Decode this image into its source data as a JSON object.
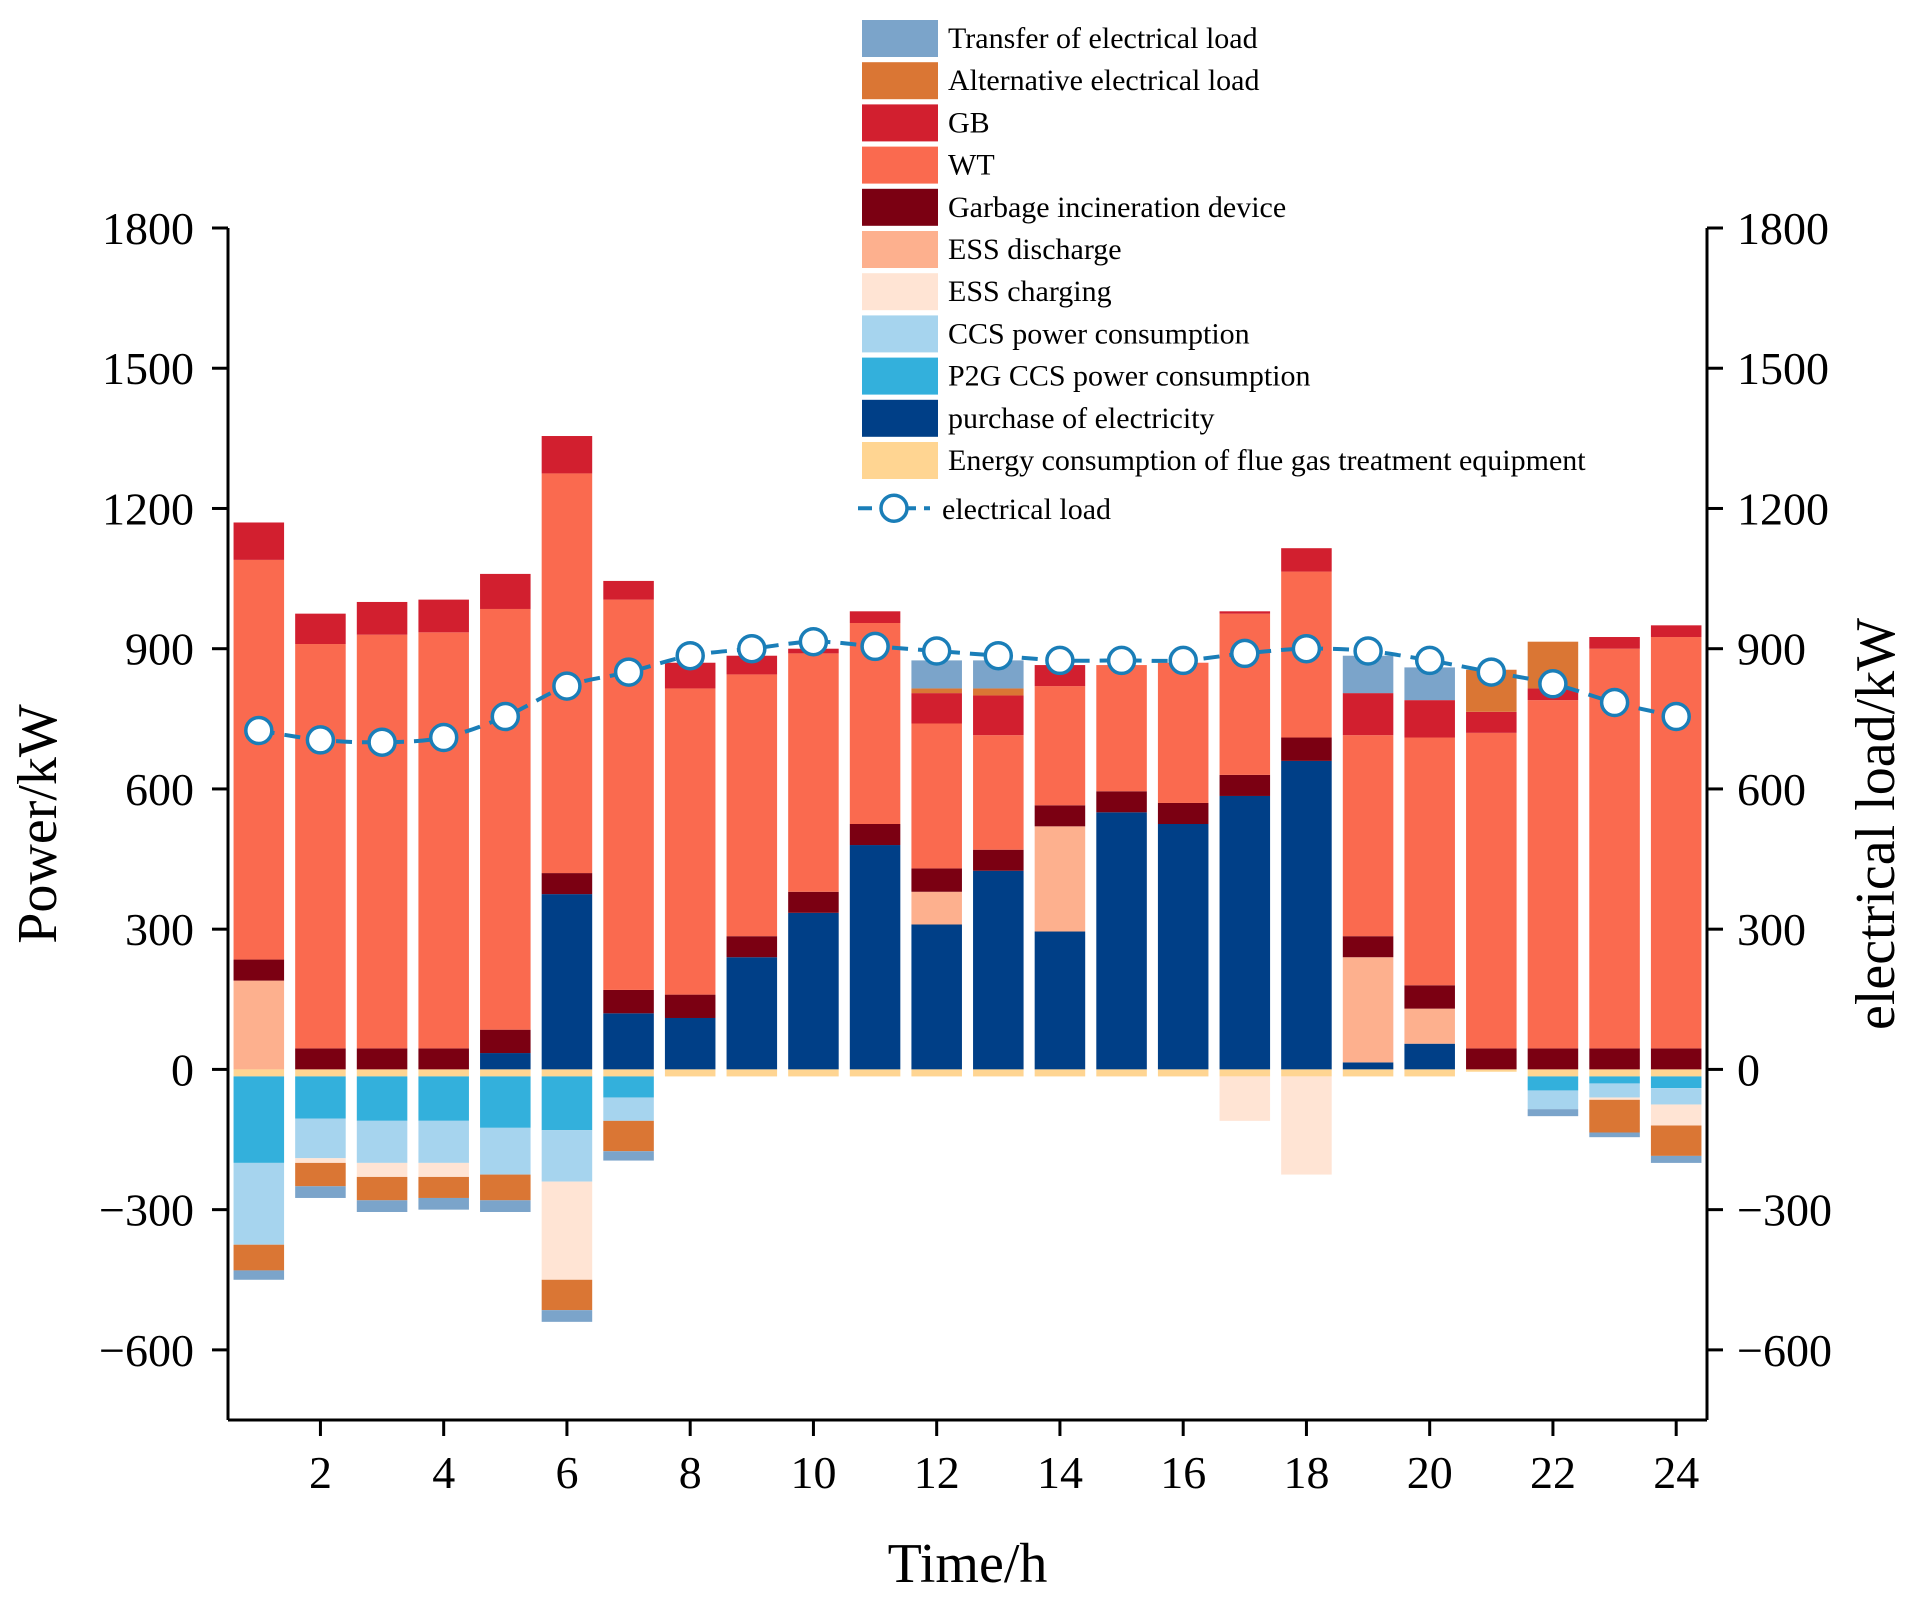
{
  "chart_data": {
    "type": "bar",
    "subtype": "stacked",
    "xlabel": "Time/h",
    "ylabel": "Power/kW",
    "y2label": "electrical load/kW",
    "ylim": [
      -750,
      1800
    ],
    "y2lim": [
      -750,
      1800
    ],
    "yticks": [
      -600,
      -300,
      0,
      300,
      600,
      900,
      1200,
      1500,
      1800
    ],
    "y2ticks": [
      -600,
      -300,
      0,
      300,
      600,
      900,
      1200,
      1500,
      1800
    ],
    "xlim": [
      0.5,
      24.5
    ],
    "xticks": [
      2,
      4,
      6,
      8,
      10,
      12,
      14,
      16,
      18,
      20,
      22,
      24
    ],
    "ytick_labels": [
      "−600",
      "−300",
      "0",
      "300",
      "600",
      "900",
      "1200",
      "1500",
      "1800"
    ],
    "y2tick_labels": [
      "−600",
      "−300",
      "0",
      "300",
      "600",
      "900",
      "1200",
      "1500",
      "1800"
    ],
    "xtick_labels": [
      "2",
      "4",
      "6",
      "8",
      "10",
      "12",
      "14",
      "16",
      "18",
      "20",
      "22",
      "24"
    ],
    "x": [
      1,
      2,
      3,
      4,
      5,
      6,
      7,
      8,
      9,
      10,
      11,
      12,
      13,
      14,
      15,
      16,
      17,
      18,
      19,
      20,
      21,
      22,
      23,
      24
    ],
    "series": [
      {
        "key": "purchase",
        "name": "purchase of electricity",
        "color": "#003F87",
        "values": [
          0,
          0,
          0,
          0,
          35,
          375,
          120,
          110,
          240,
          335,
          480,
          310,
          425,
          295,
          550,
          525,
          585,
          660,
          15,
          55,
          0,
          0,
          0,
          0
        ]
      },
      {
        "key": "ess_dis",
        "name": "ESS discharge",
        "color": "#FDB08E",
        "values": [
          190,
          0,
          0,
          0,
          0,
          0,
          0,
          0,
          0,
          0,
          0,
          70,
          0,
          225,
          0,
          0,
          0,
          0,
          225,
          75,
          0,
          0,
          0,
          0
        ]
      },
      {
        "key": "garbage",
        "name": "Garbage incineration device",
        "color": "#7B0012",
        "values": [
          45,
          45,
          45,
          45,
          50,
          45,
          50,
          50,
          45,
          45,
          45,
          50,
          45,
          45,
          45,
          45,
          45,
          50,
          45,
          50,
          45,
          45,
          45,
          45
        ]
      },
      {
        "key": "wt",
        "name": "WT",
        "color": "#FA6A4F",
        "values": [
          855,
          865,
          885,
          890,
          900,
          855,
          835,
          655,
          560,
          510,
          430,
          310,
          245,
          255,
          270,
          300,
          345,
          355,
          430,
          530,
          675,
          745,
          855,
          880
        ]
      },
      {
        "key": "gb",
        "name": "GB",
        "color": "#D21F2F",
        "values": [
          80,
          65,
          70,
          70,
          75,
          80,
          40,
          55,
          40,
          10,
          25,
          65,
          85,
          45,
          0,
          0,
          5,
          50,
          90,
          80,
          45,
          25,
          25,
          25
        ]
      },
      {
        "key": "alt",
        "name": "Alternative electrical load",
        "color": "#DA7634",
        "values": [
          0,
          0,
          0,
          0,
          0,
          0,
          0,
          0,
          0,
          0,
          0,
          10,
          15,
          0,
          0,
          0,
          0,
          0,
          0,
          0,
          90,
          100,
          0,
          0
        ]
      },
      {
        "key": "transfer",
        "name": "Transfer of electrical load",
        "color": "#7BA4CA",
        "values": [
          0,
          0,
          0,
          0,
          0,
          0,
          0,
          0,
          0,
          0,
          0,
          60,
          60,
          0,
          0,
          0,
          0,
          0,
          80,
          70,
          0,
          0,
          0,
          0
        ]
      },
      {
        "key": "flue",
        "name": "Energy consumption of flue gas treatment equipment",
        "color": "#FFD592",
        "values": [
          -15,
          -15,
          -15,
          -15,
          -15,
          -15,
          -15,
          -15,
          -15,
          -15,
          -15,
          -15,
          -15,
          -15,
          -15,
          -15,
          -15,
          -15,
          -15,
          -15,
          -5,
          -15,
          -15,
          -15
        ]
      },
      {
        "key": "p2g",
        "name": "P2G CCS power consumption",
        "color": "#33B0DC",
        "values": [
          -185,
          -90,
          -95,
          -95,
          -110,
          -115,
          -45,
          0,
          0,
          0,
          0,
          0,
          0,
          0,
          0,
          0,
          0,
          0,
          0,
          0,
          0,
          -30,
          -15,
          -25
        ]
      },
      {
        "key": "ccs",
        "name": "CCS power consumption",
        "color": "#A6D4EE",
        "values": [
          -175,
          -85,
          -90,
          -90,
          -100,
          -110,
          -50,
          0,
          0,
          0,
          0,
          0,
          0,
          0,
          0,
          0,
          0,
          0,
          0,
          0,
          0,
          -40,
          -30,
          -35
        ]
      },
      {
        "key": "ess_ch",
        "name": "ESS charging",
        "color": "#FFE4D4",
        "values": [
          0,
          -10,
          -30,
          -30,
          0,
          -210,
          0,
          0,
          0,
          0,
          0,
          0,
          0,
          0,
          0,
          0,
          -95,
          -210,
          0,
          0,
          0,
          0,
          -5,
          -45
        ]
      },
      {
        "key": "alt_neg",
        "name": "Alternative electrical load",
        "color": "#DA7634",
        "values": [
          -55,
          -50,
          -50,
          -45,
          -55,
          -65,
          -65,
          0,
          0,
          0,
          0,
          0,
          0,
          0,
          0,
          0,
          0,
          0,
          0,
          0,
          0,
          0,
          -70,
          -65
        ]
      },
      {
        "key": "transfer_neg",
        "name": "Transfer of electrical load",
        "color": "#7BA4CA",
        "values": [
          -20,
          -25,
          -25,
          -25,
          -25,
          -25,
          -20,
          0,
          0,
          0,
          0,
          0,
          0,
          0,
          0,
          0,
          0,
          0,
          0,
          0,
          0,
          -15,
          -10,
          -15
        ]
      }
    ],
    "line": {
      "name": "electrical load",
      "color": "#1A7EB8",
      "values": [
        725,
        705,
        700,
        710,
        755,
        820,
        850,
        885,
        900,
        915,
        905,
        895,
        885,
        875,
        875,
        875,
        890,
        900,
        895,
        875,
        850,
        825,
        785,
        755
      ]
    },
    "legend": {
      "position": "top-right-inside",
      "items": [
        {
          "label": "Transfer of electrical load",
          "color": "#7BA4CA"
        },
        {
          "label": "Alternative electrical load",
          "color": "#DA7634"
        },
        {
          "label": "GB",
          "color": "#D21F2F"
        },
        {
          "label": "WT",
          "color": "#FA6A4F"
        },
        {
          "label": "Garbage incineration device",
          "color": "#7B0012"
        },
        {
          "label": "ESS discharge",
          "color": "#FDB08E"
        },
        {
          "label": "ESS charging",
          "color": "#FFE4D4"
        },
        {
          "label": "CCS power consumption",
          "color": "#A6D4EE"
        },
        {
          "label": "P2G CCS power consumption",
          "color": "#33B0DC"
        },
        {
          "label": "purchase of electricity",
          "color": "#003F87"
        },
        {
          "label": "Energy consumption of flue gas treatment equipment",
          "color": "#FFD592"
        }
      ],
      "line_label": "electrical load"
    }
  }
}
